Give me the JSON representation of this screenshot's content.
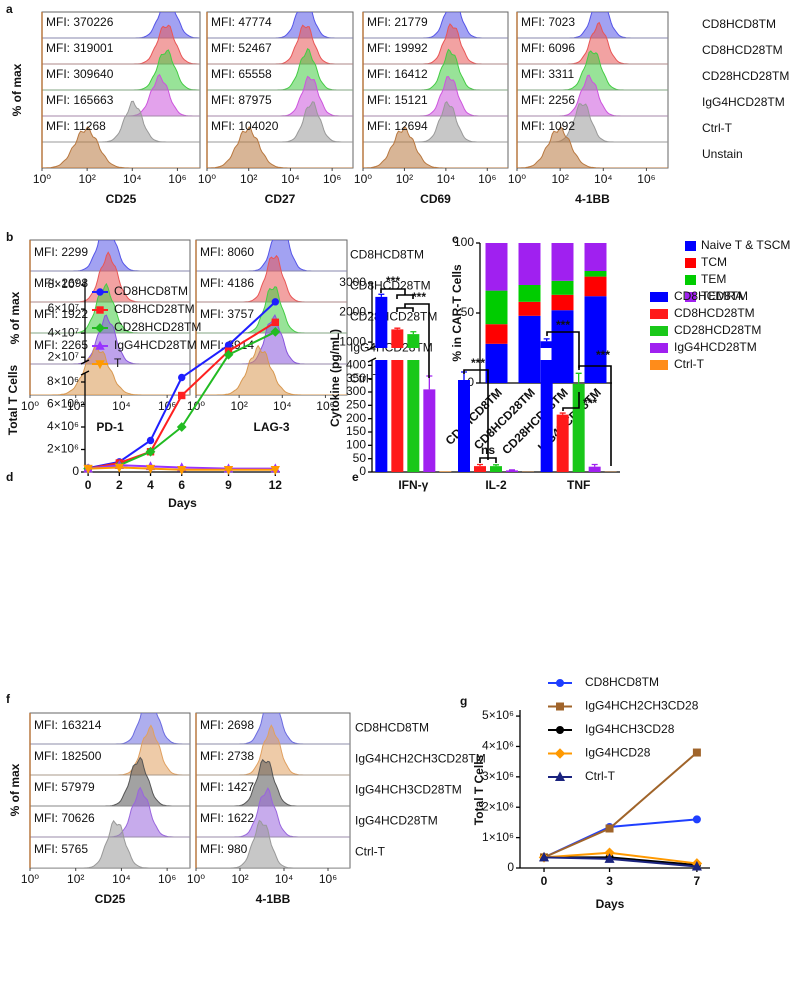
{
  "chart_data": [
    {
      "type": "flow",
      "letter": "a",
      "ylabel": "% of max",
      "rows": [
        "CD8HCD8TM",
        "CD8HCD28TM",
        "CD28HCD28TM",
        "IgG4HCD28TM",
        "Ctrl-T",
        "Unstain"
      ],
      "colors": [
        "#5555e8",
        "#e85555",
        "#44cc44",
        "#cc55dd",
        "#999999",
        "#b87840"
      ],
      "xscale": "log",
      "xlim": [
        1,
        10000000
      ],
      "xticks": [
        {
          "value": 1,
          "label": "10⁰"
        },
        {
          "value": 100,
          "label": "10²"
        },
        {
          "value": 10000,
          "label": "10⁴"
        },
        {
          "value": 1000000,
          "label": "10⁶"
        }
      ],
      "panels": [
        {
          "xlabel": "CD25",
          "values": [
            370226,
            319001,
            309640,
            165663,
            11268,
            null
          ],
          "value_labels": [
            "MFI: 370226",
            "MFI: 319001",
            "MFI: 309640",
            "MFI: 165663",
            "MFI: 11268",
            null
          ]
        },
        {
          "xlabel": "CD27",
          "values": [
            47774,
            52467,
            65558,
            87975,
            104020,
            null
          ],
          "value_labels": [
            "MFI: 47774",
            "MFI: 52467",
            "MFI: 65558",
            "MFI: 87975",
            "MFI: 104020",
            null
          ]
        },
        {
          "xlabel": "CD69",
          "values": [
            21779,
            19992,
            16412,
            15121,
            12694,
            null
          ],
          "value_labels": [
            "MFI: 21779",
            "MFI: 19992",
            "MFI: 16412",
            "MFI: 15121",
            "MFI: 12694",
            null
          ]
        },
        {
          "xlabel": "4-1BB",
          "values": [
            7023,
            6096,
            3311,
            2256,
            1092,
            null
          ],
          "value_labels": [
            "MFI: 7023",
            "MFI: 6096",
            "MFI: 3311",
            "MFI: 2256",
            "MFI: 1092",
            null
          ]
        }
      ]
    },
    {
      "type": "flow",
      "letter": "b",
      "ylabel": "% of max",
      "rows": [
        "CD8HCD8TM",
        "CD8HCD28TM",
        "CD28HCD28TM",
        "IgG4HCD28TM",
        "Ctrl-T"
      ],
      "colors": [
        "#5555e8",
        "#e85555",
        "#44cc44",
        "#8855dd",
        "#d89850"
      ],
      "xscale": "log",
      "xlim": [
        1,
        10000000
      ],
      "xticks": [
        {
          "value": 1,
          "label": "10⁰"
        },
        {
          "value": 100,
          "label": "10²"
        },
        {
          "value": 10000,
          "label": "10⁴"
        },
        {
          "value": 1000000,
          "label": "10⁶"
        }
      ],
      "panels": [
        {
          "xlabel": "PD-1",
          "values": [
            2299,
            2698,
            1922,
            2265,
            null
          ],
          "value_labels": [
            "MFI: 2299",
            "MFI: 2698",
            "MFI: 1922",
            "MFI: 2265",
            null
          ]
        },
        {
          "xlabel": "LAG-3",
          "values": [
            8060,
            4186,
            3757,
            3914,
            null
          ],
          "value_labels": [
            "MFI: 8060",
            "MFI: 4186",
            "MFI: 3757",
            "MFI: 3914",
            null
          ]
        }
      ]
    },
    {
      "type": "stacked_bar",
      "letter": "c",
      "ylabel": "% in CAR-T Cells",
      "categories": [
        "CD8HCD8TM",
        "CD8HCD28TM",
        "CD28HCD28TM",
        "IgG4HCD28TM"
      ],
      "ylim": [
        0,
        100
      ],
      "yticks": [
        0,
        50,
        100
      ],
      "series": [
        {
          "name": "Naive T & TSCM",
          "color": "#0000ff",
          "values": [
            28,
            48,
            52,
            62
          ]
        },
        {
          "name": "TCM",
          "color": "#ff0000",
          "values": [
            14,
            10,
            11,
            14
          ]
        },
        {
          "name": "TEM",
          "color": "#00cc00",
          "values": [
            24,
            12,
            10,
            4
          ]
        },
        {
          "name": "TEMRA",
          "color": "#a020f0",
          "values": [
            34,
            30,
            27,
            20
          ]
        }
      ]
    },
    {
      "type": "broken_line",
      "letter": "d",
      "ylabel": "Total T Cells",
      "xlabel": "Days",
      "x": [
        0,
        2,
        4,
        6,
        9,
        12
      ],
      "xlim": [
        -0.2,
        12.3
      ],
      "xticks": [
        0,
        2,
        4,
        6,
        9,
        12
      ],
      "ylim_lower": [
        0,
        8800000
      ],
      "yticks_lower": [
        0,
        {
          "value": 2000000,
          "label": "2×10⁶"
        },
        {
          "value": 4000000,
          "label": "4×10⁶"
        },
        {
          "value": 6000000,
          "label": "6×10⁶"
        },
        {
          "value": 8000000,
          "label": "8×10⁶"
        }
      ],
      "ylim_upper": [
        16000000,
        85000000
      ],
      "yticks_upper": [
        {
          "value": 20000000,
          "label": "2×10⁷"
        },
        {
          "value": 40000000,
          "label": "4×10⁷"
        },
        {
          "value": 60000000,
          "label": "6×10⁷"
        },
        {
          "value": 80000000,
          "label": "8×10⁷"
        }
      ],
      "series": [
        {
          "name": "CD8HCD8TM",
          "color": "#1f1fff",
          "marker": "circle",
          "values": [
            350000,
            900000,
            2800000,
            8400000,
            30000000,
            66000000
          ]
        },
        {
          "name": "CD8HCD28TM",
          "color": "#ff2020",
          "marker": "square",
          "values": [
            300000,
            800000,
            1800000,
            6800000,
            25000000,
            49000000
          ]
        },
        {
          "name": "CD28HCD28TM",
          "color": "#22bb22",
          "marker": "diamond",
          "values": [
            300000,
            600000,
            1800000,
            4000000,
            22000000,
            41000000
          ]
        },
        {
          "name": "IgG4HCD28TM",
          "color": "#9933ff",
          "marker": "triangle",
          "values": [
            300000,
            600000,
            500000,
            400000,
            300000,
            300000
          ]
        },
        {
          "name": "T",
          "color": "#ff9900",
          "marker": "triangle-down",
          "values": [
            300000,
            400000,
            300000,
            200000,
            200000,
            200000
          ]
        }
      ]
    },
    {
      "type": "broken_bar",
      "letter": "e",
      "ylabel": "Cytokine (pg/mL)",
      "categories": [
        "IFN-γ",
        "IL-2",
        "TNF"
      ],
      "ylim_lower": [
        0,
        420
      ],
      "yticks_lower": [
        0,
        50,
        100,
        150,
        200,
        250,
        300,
        350,
        400
      ],
      "ylim_upper": [
        800,
        3000
      ],
      "yticks_upper": [
        1000,
        2000,
        3000
      ],
      "series": [
        {
          "name": "CD8HCD8TM",
          "color": "#0000ff",
          "values": [
            2530,
            345,
            1030
          ],
          "errors": [
            90,
            30,
            80
          ]
        },
        {
          "name": "CD8HCD28TM",
          "color": "#ff1a1a",
          "values": [
            1430,
            22,
            215
          ],
          "errors": [
            40,
            6,
            6
          ]
        },
        {
          "name": "CD28HCD28TM",
          "color": "#19c819",
          "values": [
            1270,
            22,
            330
          ],
          "errors": [
            80,
            5,
            40
          ]
        },
        {
          "name": "IgG4HCD28TM",
          "color": "#a020f0",
          "values": [
            310,
            6,
            20
          ],
          "errors": [
            50,
            2,
            8
          ]
        },
        {
          "name": "Ctrl-T",
          "color": "#ff8c1a",
          "values": [
            2,
            1,
            1
          ],
          "errors": [
            0,
            0,
            0
          ]
        }
      ],
      "annotations": [
        "***",
        "***",
        "***",
        "ns",
        "***",
        "***",
        "***"
      ]
    },
    {
      "type": "flow",
      "letter": "f",
      "ylabel": "% of max",
      "rows": [
        "CD8HCD8TM",
        "IgG4HCH2CH3CD28TM",
        "IgG4HCH3CD28TM",
        "IgG4HCD28TM",
        "Ctrl-T"
      ],
      "colors": [
        "#6b6be0",
        "#e0a060",
        "#555555",
        "#9966dd",
        "#999999"
      ],
      "xscale": "log",
      "xlim": [
        1,
        10000000
      ],
      "xticks": [
        {
          "value": 1,
          "label": "10⁰"
        },
        {
          "value": 100,
          "label": "10²"
        },
        {
          "value": 10000,
          "label": "10⁴"
        },
        {
          "value": 1000000,
          "label": "10⁶"
        }
      ],
      "panels": [
        {
          "xlabel": "CD25",
          "values": [
            163214,
            182500,
            57979,
            70626,
            5765
          ],
          "value_labels": [
            "MFI: 163214",
            "MFI: 182500",
            "MFI: 57979",
            "MFI: 70626",
            "MFI: 5765"
          ]
        },
        {
          "xlabel": "4-1BB",
          "values": [
            2698,
            2738,
            1427,
            1622,
            980
          ],
          "value_labels": [
            "MFI: 2698",
            "MFI: 2738",
            "MFI: 1427",
            "MFI: 1622",
            "MFI: 980"
          ]
        }
      ]
    },
    {
      "type": "line",
      "letter": "g",
      "ylabel": "Total T Cells",
      "xlabel": "Days",
      "x": [
        0,
        3,
        7
      ],
      "xlim": [
        -1.1,
        7.6
      ],
      "xticks": [
        0,
        3,
        7
      ],
      "ylim": [
        0,
        5200000
      ],
      "yticks": [
        0,
        {
          "value": 1000000,
          "label": "1×10⁶"
        },
        {
          "value": 2000000,
          "label": "2×10⁶"
        },
        {
          "value": 3000000,
          "label": "3×10⁶"
        },
        {
          "value": 4000000,
          "label": "4×10⁶"
        },
        {
          "value": 5000000,
          "label": "5×10⁶"
        }
      ],
      "series": [
        {
          "name": "CD8HCD8TM",
          "color": "#1f3fff",
          "marker": "circle",
          "values": [
            350000,
            1350000,
            1600000
          ]
        },
        {
          "name": "IgG4HCH2CH3CD28",
          "color": "#a0642a",
          "marker": "square",
          "values": [
            350000,
            1300000,
            3800000
          ]
        },
        {
          "name": "IgG4HCH3CD28",
          "color": "#000000",
          "marker": "circle",
          "values": [
            350000,
            350000,
            100000
          ]
        },
        {
          "name": "IgG4HCD28",
          "color": "#ff9900",
          "marker": "diamond",
          "values": [
            350000,
            500000,
            150000
          ]
        },
        {
          "name": "Ctrl-T",
          "color": "#1a237e",
          "marker": "triangle",
          "values": [
            350000,
            300000,
            50000
          ]
        }
      ]
    }
  ]
}
